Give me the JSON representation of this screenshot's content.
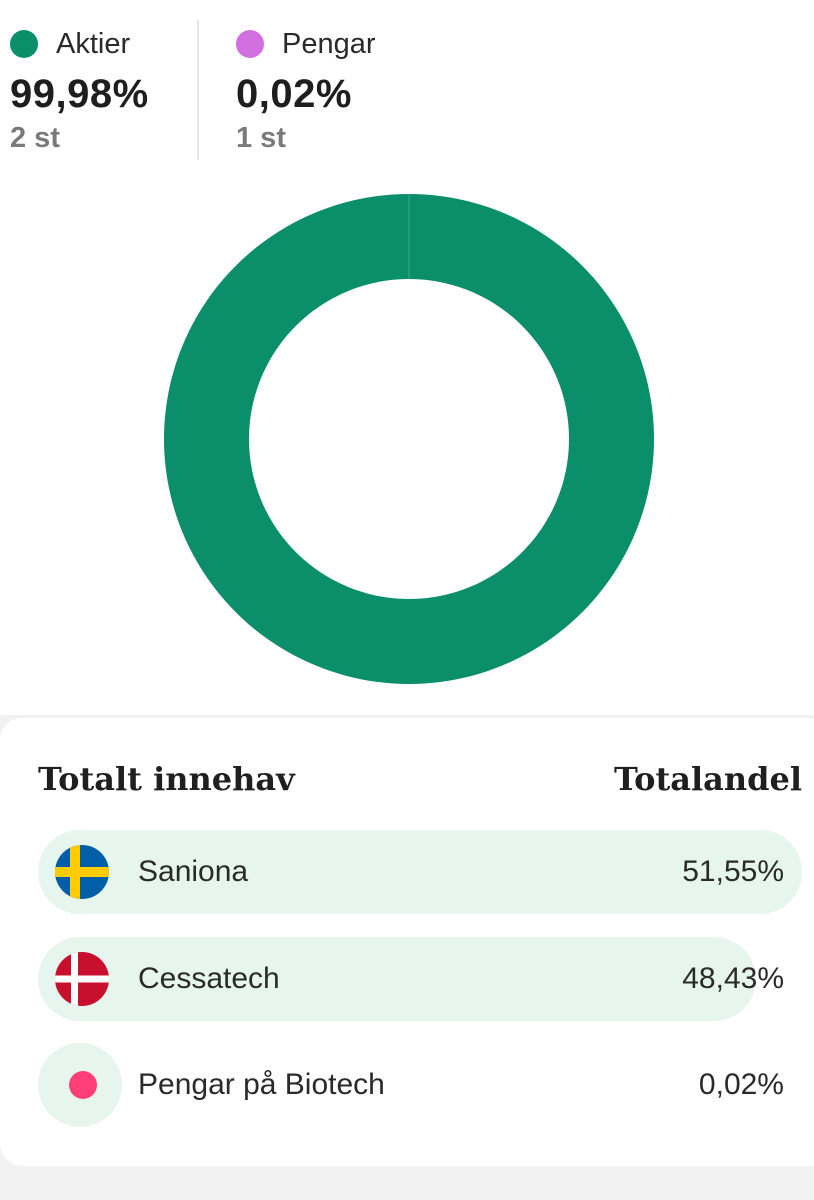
{
  "allocation": {
    "items": [
      {
        "label": "Aktier",
        "percent": "99,98%",
        "count": "2 st",
        "color": "#0a8f6a"
      },
      {
        "label": "Pengar",
        "percent": "0,02%",
        "count": "1 st",
        "color": "#d270e0"
      }
    ]
  },
  "chart_data": {
    "type": "pie",
    "categories": [
      "Aktier",
      "Pengar"
    ],
    "values": [
      99.98,
      0.02
    ],
    "colors": [
      "#0a8f6a",
      "#d270e0"
    ]
  },
  "holdings": {
    "header_left": "Totalt innehav",
    "header_right": "Totalandel",
    "rows": [
      {
        "name": "Saniona",
        "share": "51,55%",
        "share_value": 51.55,
        "icon": "sweden-flag-icon"
      },
      {
        "name": "Cessatech",
        "share": "48,43%",
        "share_value": 48.43,
        "icon": "denmark-flag-icon"
      },
      {
        "name": "Pengar på Biotech",
        "share": "0,02%",
        "share_value": 0.02,
        "icon": "cash-dot-icon",
        "icon_color": "#ff3f77"
      }
    ]
  }
}
